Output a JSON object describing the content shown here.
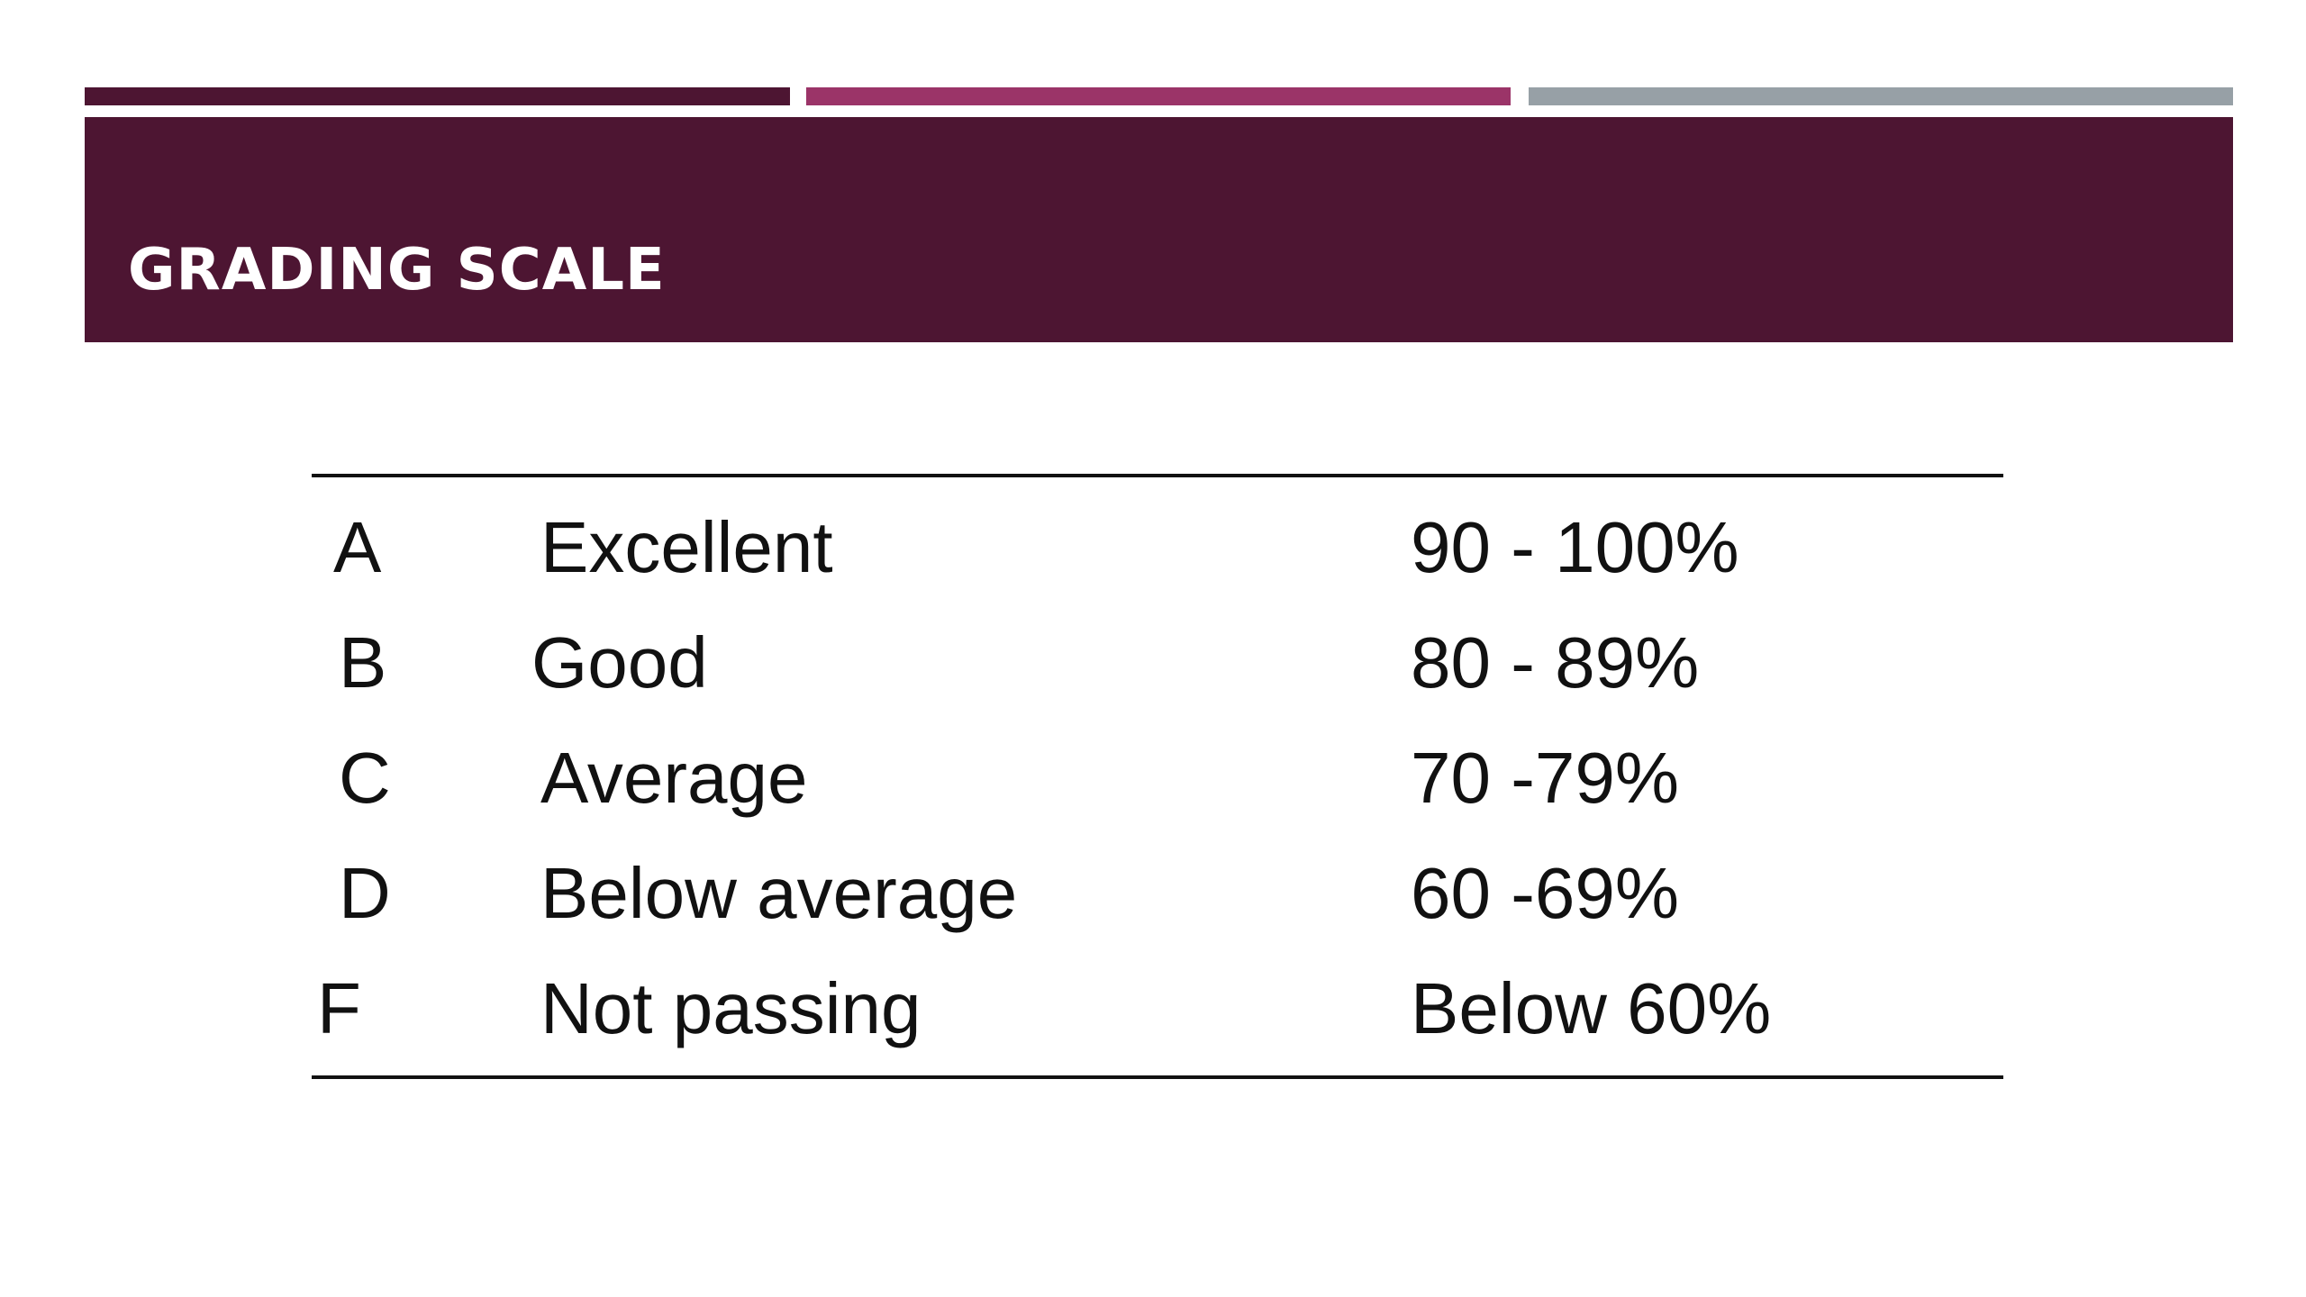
{
  "colors": {
    "accent_dark": "#4d1532",
    "accent_magenta": "#9b3468",
    "accent_gray": "#97a0a6",
    "title_band": "#4d1532",
    "title_text": "#ffffff",
    "body_text": "#111111"
  },
  "slide": {
    "title": "GRADING SCALE"
  },
  "grading_table": {
    "rows": [
      {
        "grade": "A",
        "description": "Excellent",
        "range": "90 - 100%"
      },
      {
        "grade": "B",
        "description": "Good",
        "range": "80 - 89%"
      },
      {
        "grade": "C",
        "description": "Average",
        "range": "70 -79%"
      },
      {
        "grade": "D",
        "description": "Below average",
        "range": "60 -69%"
      },
      {
        "grade": "F",
        "description": "Not passing",
        "range": "Below 60%"
      }
    ]
  }
}
